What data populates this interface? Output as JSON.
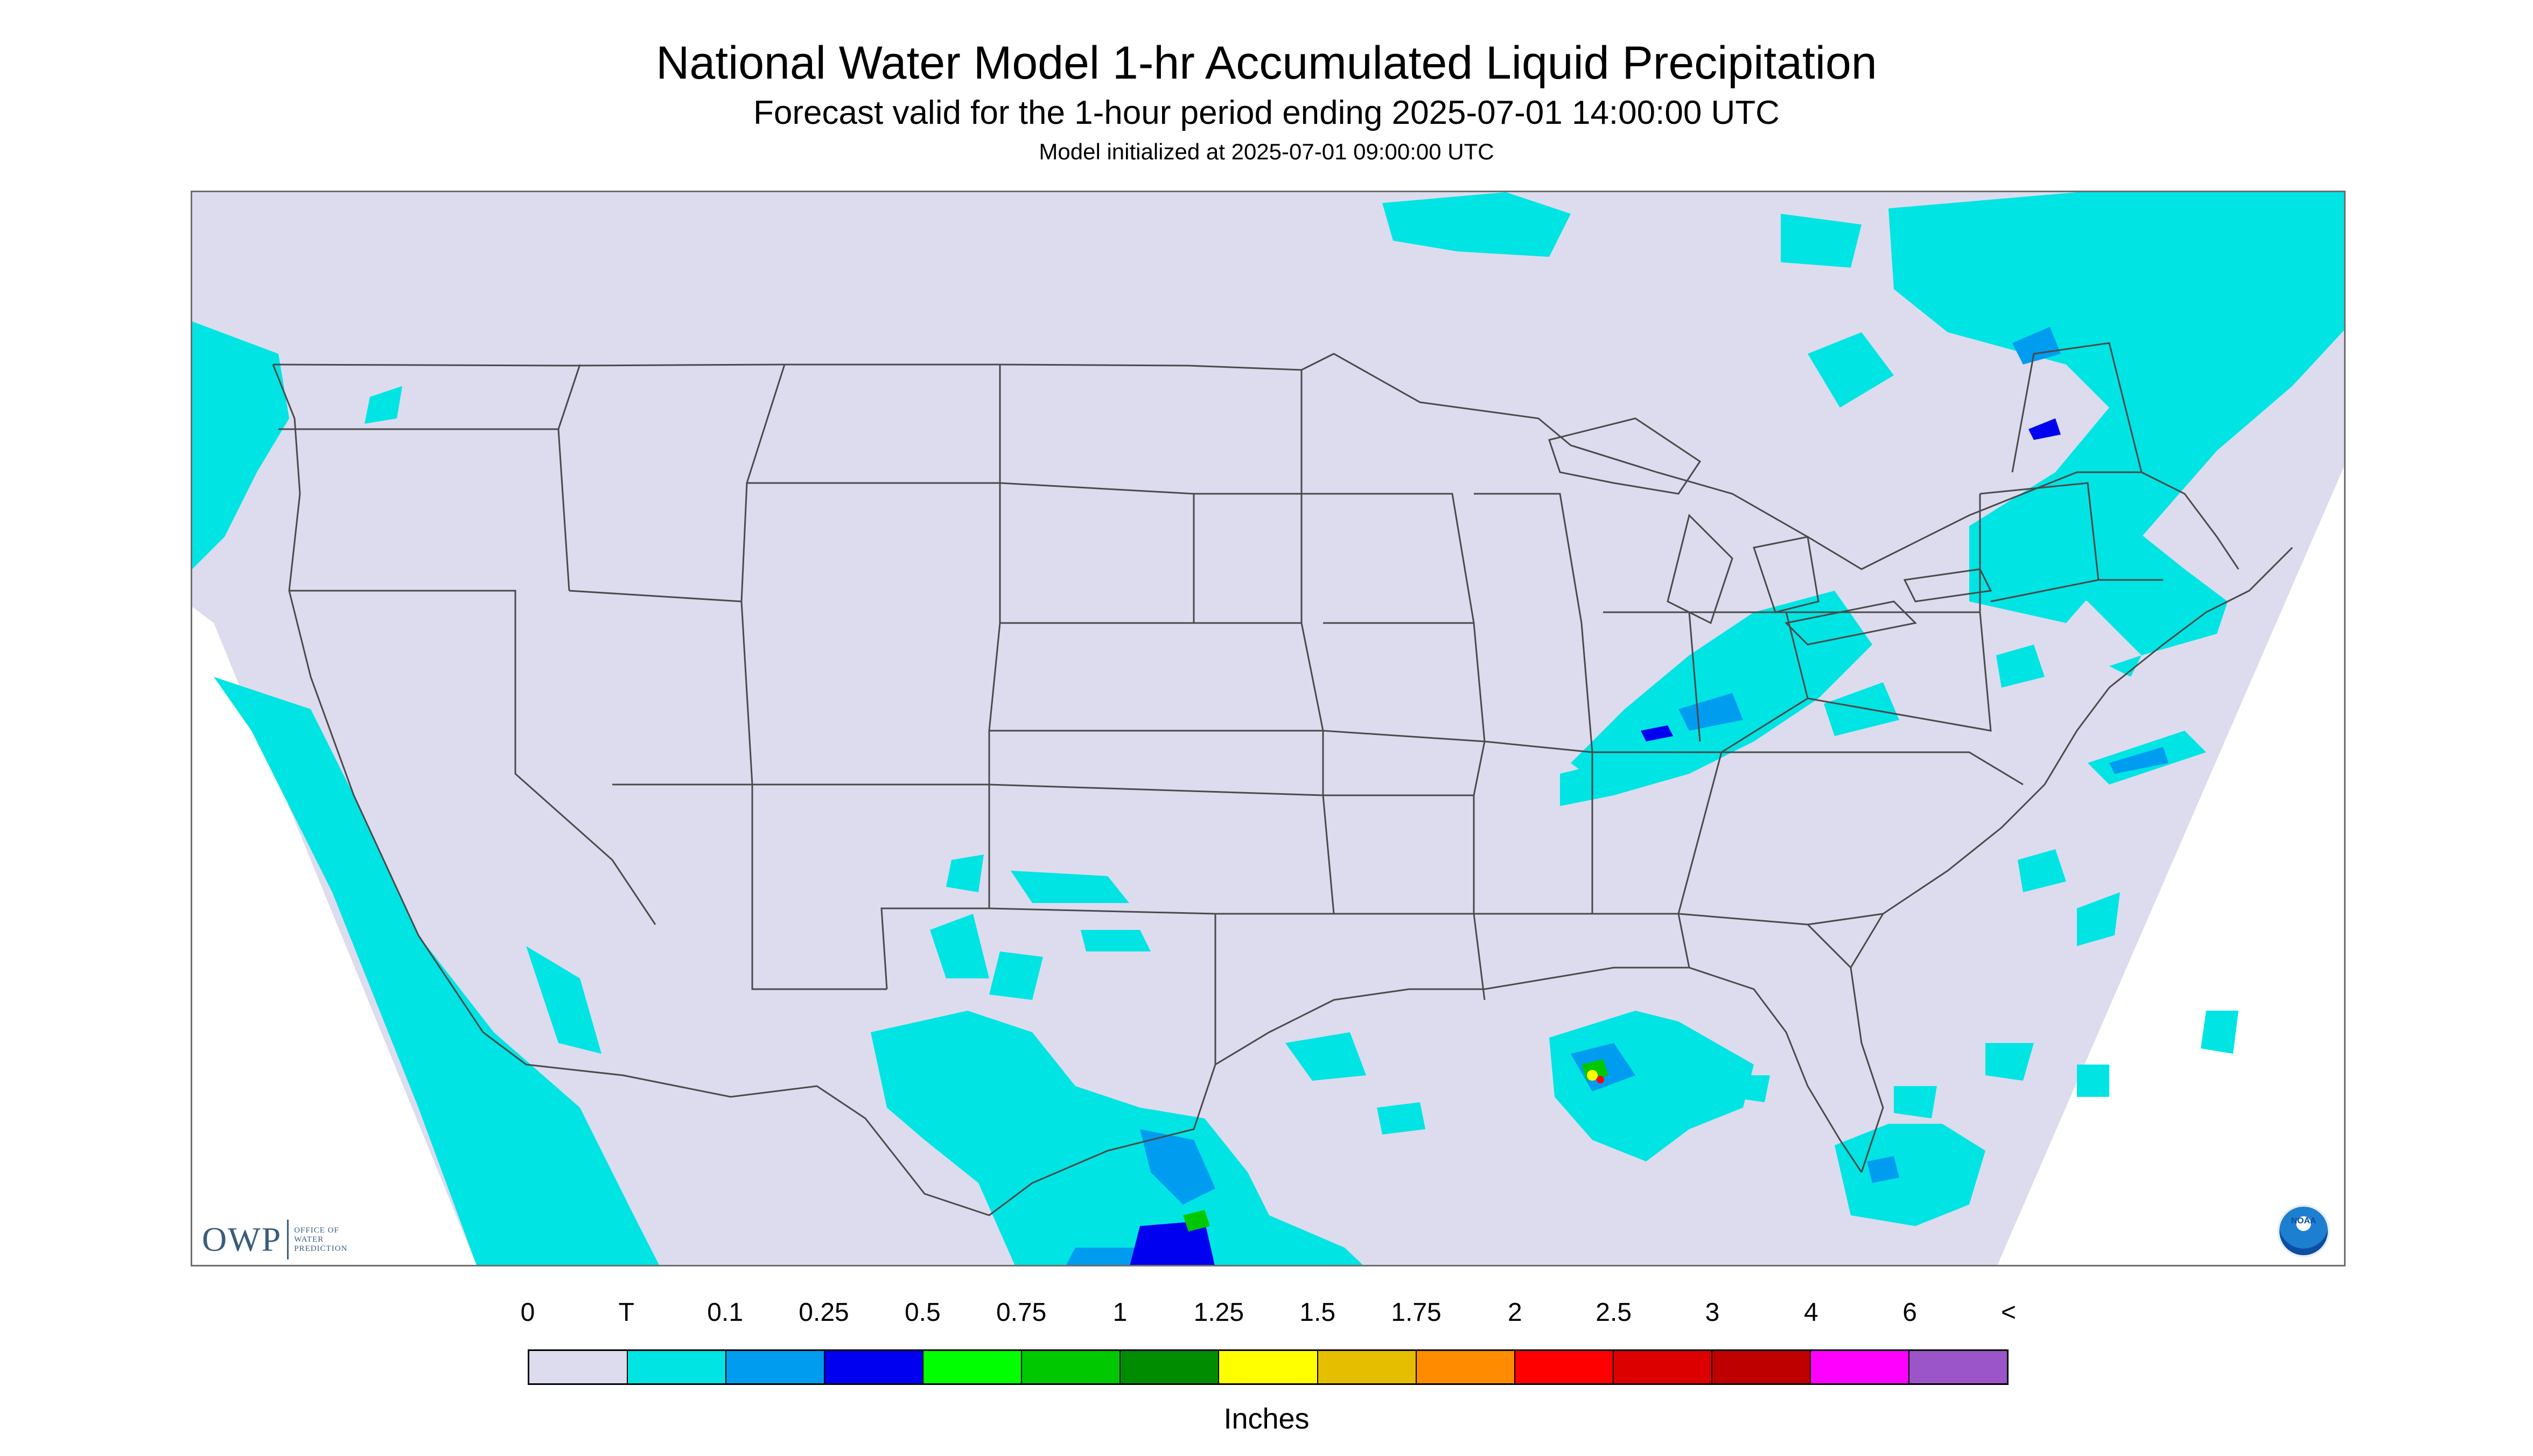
{
  "header": {
    "title": "National Water Model 1-hr Accumulated Liquid Precipitation",
    "subtitle": "Forecast valid for the 1-hour period ending 2025-07-01 14:00:00 UTC",
    "init_line": "Model initialized at 2025-07-01 09:00:00 UTC"
  },
  "logos": {
    "owp_short": "OWP",
    "owp_full": [
      "OFFICE OF",
      "WATER",
      "PREDICTION"
    ],
    "noaa": "NOAA"
  },
  "legend": {
    "labels": [
      "0",
      "T",
      "0.1",
      "0.25",
      "0.5",
      "0.75",
      "1",
      "1.25",
      "1.5",
      "1.75",
      "2",
      "2.5",
      "3",
      "4",
      "6",
      "<"
    ],
    "colors": [
      "#dcdcee",
      "#00e4e4",
      "#009cf0",
      "#0000f0",
      "#00ff00",
      "#00c800",
      "#008c00",
      "#ffff00",
      "#e6be00",
      "#ff8c00",
      "#ff0000",
      "#dc0000",
      "#be0000",
      "#ff00ff",
      "#9b55c8"
    ],
    "units": "Inches"
  },
  "map_colors": {
    "no_data": "#ffffff",
    "domain": "#dcdcee",
    "borders": "#4a4a4a"
  }
}
